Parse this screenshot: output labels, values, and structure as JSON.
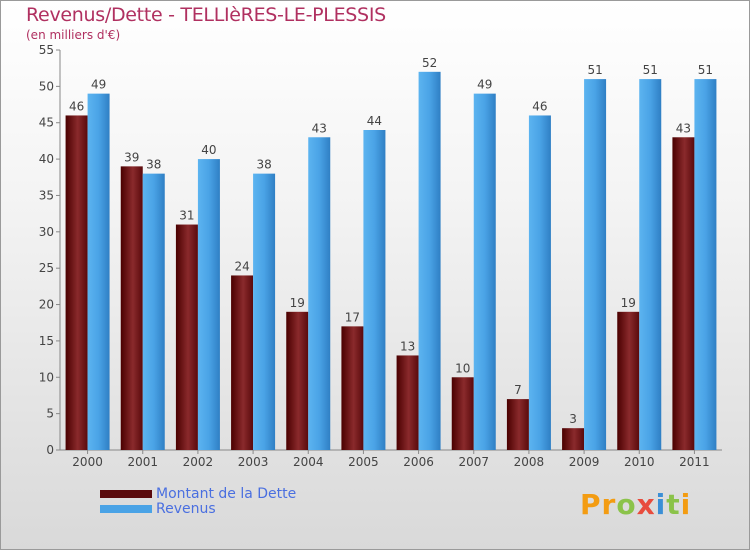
{
  "title": "Revenus/Dette - TELLIèRES-LE-PLESSIS",
  "subtitle": "(en milliers d'€)",
  "logo": {
    "text": "Proxiti",
    "colors": [
      "#f39c12",
      "#f39c12",
      "#8bc34a",
      "#e84c3d",
      "#3b8fd6",
      "#8bc34a",
      "#f39c12"
    ]
  },
  "colors": {
    "dette": "#7a1f22",
    "revenus": "#4aa3e6",
    "title": "#b03060"
  },
  "chart_data": {
    "type": "bar",
    "categories": [
      "2000",
      "2001",
      "2002",
      "2003",
      "2004",
      "2005",
      "2006",
      "2007",
      "2008",
      "2009",
      "2010",
      "2011"
    ],
    "series": [
      {
        "name": "Montant de la Dette",
        "values": [
          46,
          39,
          31,
          24,
          19,
          17,
          13,
          10,
          7,
          3,
          19,
          43
        ]
      },
      {
        "name": "Revenus",
        "values": [
          49,
          38,
          40,
          38,
          43,
          44,
          52,
          49,
          46,
          51,
          51,
          51
        ]
      }
    ],
    "ylim": [
      0,
      55
    ],
    "yticks": [
      0,
      5,
      10,
      15,
      20,
      25,
      30,
      35,
      40,
      45,
      50,
      55
    ],
    "grid": false,
    "legend": "bottom-left"
  }
}
